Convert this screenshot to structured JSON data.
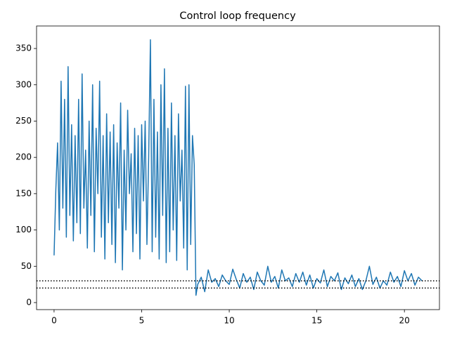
{
  "chart_data": {
    "type": "line",
    "title": "Control loop frequency",
    "x": [
      0,
      0.1,
      0.2,
      0.3,
      0.4,
      0.5,
      0.6,
      0.7,
      0.8,
      0.9,
      1.0,
      1.1,
      1.2,
      1.3,
      1.4,
      1.5,
      1.6,
      1.7,
      1.8,
      1.9,
      2.0,
      2.1,
      2.2,
      2.3,
      2.4,
      2.5,
      2.6,
      2.7,
      2.8,
      2.9,
      3.0,
      3.1,
      3.2,
      3.3,
      3.4,
      3.5,
      3.6,
      3.7,
      3.8,
      3.9,
      4.0,
      4.1,
      4.2,
      4.3,
      4.4,
      4.5,
      4.6,
      4.7,
      4.8,
      4.9,
      5.0,
      5.1,
      5.2,
      5.3,
      5.4,
      5.5,
      5.6,
      5.7,
      5.8,
      5.9,
      6.0,
      6.1,
      6.2,
      6.3,
      6.4,
      6.5,
      6.6,
      6.7,
      6.8,
      6.9,
      7.0,
      7.1,
      7.2,
      7.3,
      7.4,
      7.5,
      7.6,
      7.7,
      7.8,
      7.9,
      8.0,
      8.1,
      8.2,
      8.4,
      8.6,
      8.8,
      9.0,
      9.2,
      9.4,
      9.6,
      9.8,
      10.0,
      10.2,
      10.4,
      10.6,
      10.8,
      11.0,
      11.2,
      11.4,
      11.6,
      11.8,
      12.0,
      12.2,
      12.4,
      12.6,
      12.8,
      13.0,
      13.2,
      13.4,
      13.6,
      13.8,
      14.0,
      14.2,
      14.4,
      14.6,
      14.8,
      15.0,
      15.2,
      15.4,
      15.6,
      15.8,
      16.0,
      16.2,
      16.4,
      16.6,
      16.8,
      17.0,
      17.2,
      17.4,
      17.6,
      17.8,
      18.0,
      18.2,
      18.4,
      18.6,
      18.8,
      19.0,
      19.2,
      19.4,
      19.6,
      19.8,
      20.0,
      20.2,
      20.4,
      20.6,
      20.8,
      21.0
    ],
    "series": [
      {
        "color": "#1f77b4",
        "values": [
          65,
          155,
          220,
          100,
          305,
          130,
          280,
          90,
          325,
          120,
          245,
          85,
          230,
          110,
          280,
          95,
          315,
          130,
          210,
          75,
          250,
          120,
          300,
          70,
          240,
          150,
          305,
          90,
          230,
          60,
          260,
          110,
          235,
          80,
          245,
          55,
          220,
          130,
          275,
          45,
          210,
          100,
          265,
          150,
          205,
          70,
          240,
          95,
          230,
          60,
          245,
          140,
          250,
          80,
          200,
          362,
          70,
          280,
          90,
          235,
          60,
          300,
          120,
          322,
          55,
          240,
          70,
          275,
          100,
          230,
          58,
          260,
          140,
          210,
          75,
          298,
          45,
          300,
          80,
          230,
          190,
          10,
          25,
          35,
          15,
          45,
          28,
          33,
          22,
          38,
          30,
          25,
          46,
          32,
          20,
          40,
          28,
          35,
          18,
          42,
          30,
          24,
          50,
          28,
          36,
          20,
          45,
          30,
          34,
          22,
          40,
          28,
          42,
          24,
          38,
          20,
          33,
          27,
          45,
          22,
          36,
          30,
          41,
          18,
          34,
          26,
          38,
          22,
          33,
          18,
          30,
          50,
          25,
          35,
          20,
          30,
          24,
          42,
          28,
          36,
          22,
          44,
          30,
          40,
          24,
          35,
          30
        ]
      }
    ],
    "hlines": [
      {
        "y": 30,
        "color": "#000000",
        "style": "dotted"
      },
      {
        "y": 20,
        "color": "#000000",
        "style": "dotted"
      }
    ],
    "xlim": [
      -1.0,
      22.0
    ],
    "ylim": [
      -9.7,
      381
    ],
    "xticks": [
      0,
      5,
      10,
      15,
      20
    ],
    "yticks": [
      0,
      50,
      100,
      150,
      200,
      250,
      300,
      350
    ]
  }
}
